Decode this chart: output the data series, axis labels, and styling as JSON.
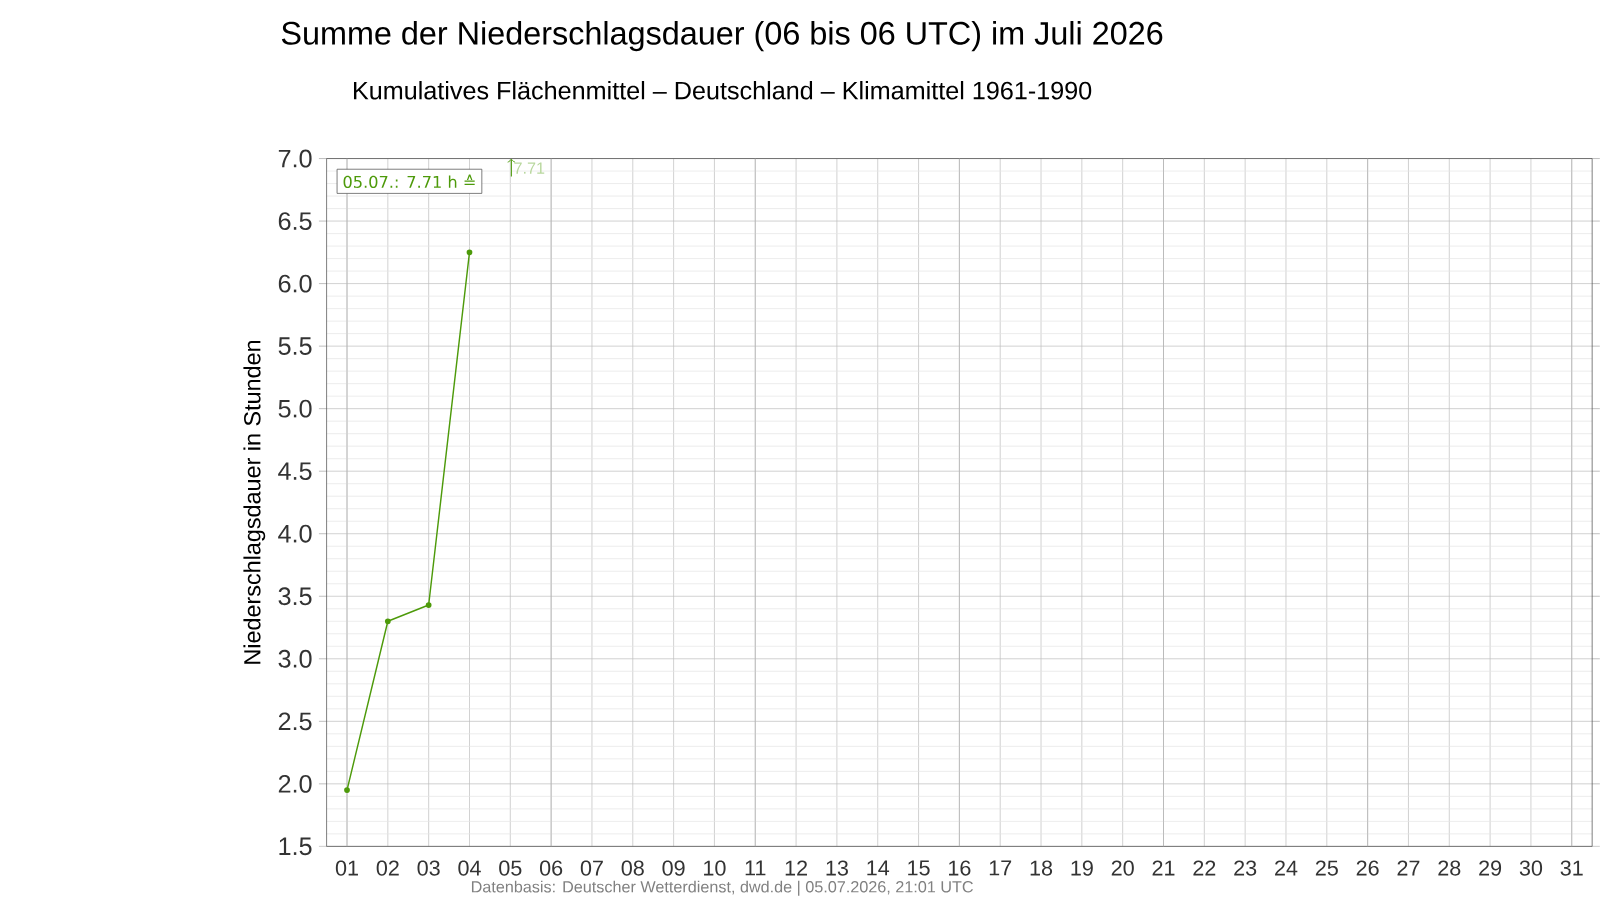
{
  "chart_data": {
    "type": "line",
    "title": "Summe der Niederschlagsdauer (06 bis 06 UTC) im Juli 2026",
    "subtitle": "Kumulatives Flächenmittel – Deutschland – Klimamittel 1961-1990",
    "ylabel": "Niederschlagsdauer in Stunden",
    "categories": [
      "01",
      "02",
      "03",
      "04",
      "05",
      "06",
      "07",
      "08",
      "09",
      "10",
      "11",
      "12",
      "13",
      "14",
      "15",
      "16",
      "17",
      "18",
      "19",
      "20",
      "21",
      "22",
      "23",
      "24",
      "25",
      "26",
      "27",
      "28",
      "29",
      "30",
      "31"
    ],
    "series": [
      {
        "color": "#4d9a0a",
        "values": [
          1.95,
          3.3,
          3.43,
          6.25,
          null,
          null,
          null,
          null,
          null,
          null,
          null,
          null,
          null,
          null,
          null,
          null,
          null,
          null,
          null,
          null,
          null,
          null,
          null,
          null,
          null,
          null,
          null,
          null,
          null,
          null,
          null
        ]
      }
    ],
    "ylim": [
      1.5,
      7.0
    ],
    "yticks": [
      {
        "value": 1.5,
        "label": "1.5"
      },
      {
        "value": 2.0,
        "label": "2.0"
      },
      {
        "value": 2.5,
        "label": "2.5"
      },
      {
        "value": 3.0,
        "label": "3.0"
      },
      {
        "value": 3.5,
        "label": "3.5"
      },
      {
        "value": 4.0,
        "label": "4.0"
      },
      {
        "value": 4.5,
        "label": "4.5"
      },
      {
        "value": 5.0,
        "label": "5.0"
      },
      {
        "value": 5.5,
        "label": "5.5"
      },
      {
        "value": 6.0,
        "label": "6.0"
      },
      {
        "value": 6.5,
        "label": "6.5"
      },
      {
        "value": 7.0,
        "label": "7.0"
      }
    ],
    "grid": true,
    "marker": "circle",
    "line_style": "solid",
    "annotations": [
      "05.07.: 7.71 h ≙",
      "7.71",
      "Datenbasis: Deutscher Wetterdienst, dwd.de | 05.07.2026, 21:01 UTC"
    ]
  }
}
